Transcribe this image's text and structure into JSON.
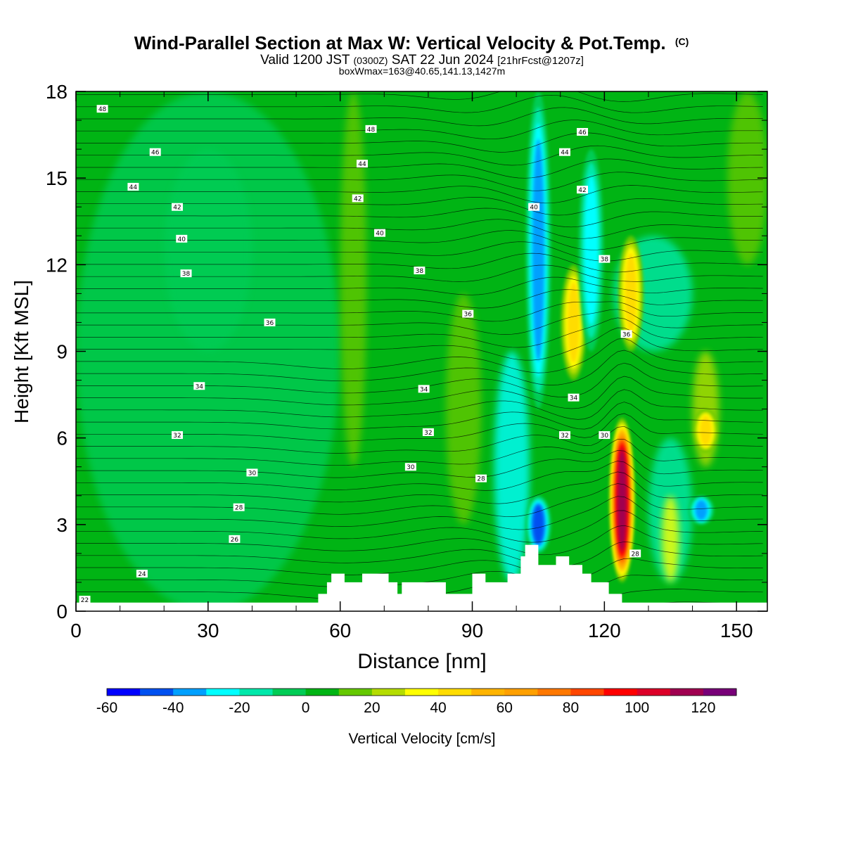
{
  "header": {
    "title": "Wind-Parallel Section at Max W: Vertical Velocity & Pot.Temp.",
    "title_mark": "(C)",
    "valid_prefix": "Valid 1200 JST",
    "valid_utc": "(0300Z)",
    "valid_date": "SAT 22 Jun 2024",
    "forecast": "[21hrFcst@1207z]",
    "boxwmax": "boxWmax=163@40.65,141.13,1427m"
  },
  "chart_data": {
    "type": "heatmap",
    "xlabel": "Distance [nm]",
    "ylabel": "Height [Kft MSL]",
    "xlim": [
      0,
      157
    ],
    "ylim": [
      0,
      18
    ],
    "xticks": [
      0,
      30,
      60,
      90,
      120,
      150
    ],
    "yticks": [
      0,
      3,
      6,
      9,
      12,
      15,
      18
    ],
    "colorbar": {
      "label": "Vertical Velocity [cm/s]",
      "levels": [
        -60,
        -50,
        -40,
        -30,
        -20,
        -10,
        0,
        10,
        20,
        30,
        40,
        50,
        60,
        70,
        80,
        90,
        100,
        110,
        120,
        130
      ],
      "tick_labels": [
        "-60",
        "-40",
        "-20",
        "0",
        "20",
        "40",
        "60",
        "80",
        "100",
        "120"
      ],
      "colors": [
        "#0000ff",
        "#0050f0",
        "#00a0ff",
        "#00ffff",
        "#00e8aa",
        "#00cc55",
        "#00b414",
        "#64c800",
        "#b4dc00",
        "#ffff00",
        "#ffdc00",
        "#ffb400",
        "#ffa000",
        "#ff7800",
        "#ff4600",
        "#ff0000",
        "#dc0028",
        "#a00050",
        "#780078"
      ]
    },
    "vertical_velocity_features": [
      {
        "x": 105,
        "z_bottom": 7,
        "z_top": 18,
        "w": -40
      },
      {
        "x": 105,
        "z_bottom": 2,
        "z_top": 4,
        "w": -50
      },
      {
        "x": 113,
        "z_bottom": 8,
        "z_top": 12,
        "w": 40
      },
      {
        "x": 117,
        "z_bottom": 9,
        "z_top": 16,
        "w": -30
      },
      {
        "x": 124,
        "z_bottom": 1,
        "z_top": 6.7,
        "w": 110
      },
      {
        "x": 126,
        "z_bottom": 9,
        "z_top": 13,
        "w": 40
      },
      {
        "x": 142,
        "z_bottom": 3,
        "z_top": 4,
        "w": -40
      },
      {
        "x": 143,
        "z_bottom": 5.5,
        "z_top": 7,
        "w": 40
      }
    ],
    "theta_contour_labels": [
      {
        "value": "48",
        "x": 6,
        "z": 17.4
      },
      {
        "value": "46",
        "x": 18,
        "z": 15.9
      },
      {
        "value": "44",
        "x": 13,
        "z": 14.7
      },
      {
        "value": "42",
        "x": 23,
        "z": 14.0
      },
      {
        "value": "40",
        "x": 24,
        "z": 12.9
      },
      {
        "value": "38",
        "x": 25,
        "z": 11.7
      },
      {
        "value": "36",
        "x": 44,
        "z": 10.0
      },
      {
        "value": "34",
        "x": 28,
        "z": 7.8
      },
      {
        "value": "32",
        "x": 23,
        "z": 6.1
      },
      {
        "value": "30",
        "x": 40,
        "z": 4.8
      },
      {
        "value": "28",
        "x": 37,
        "z": 3.6
      },
      {
        "value": "26",
        "x": 36,
        "z": 2.5
      },
      {
        "value": "24",
        "x": 15,
        "z": 1.3
      },
      {
        "value": "22",
        "x": 2,
        "z": 0.4
      },
      {
        "value": "48",
        "x": 67,
        "z": 16.7
      },
      {
        "value": "44",
        "x": 65,
        "z": 15.5
      },
      {
        "value": "42",
        "x": 64,
        "z": 14.3
      },
      {
        "value": "40",
        "x": 69,
        "z": 13.1
      },
      {
        "value": "38",
        "x": 78,
        "z": 11.8
      },
      {
        "value": "36",
        "x": 89,
        "z": 10.3
      },
      {
        "value": "34",
        "x": 79,
        "z": 7.7
      },
      {
        "value": "32",
        "x": 80,
        "z": 6.2
      },
      {
        "value": "30",
        "x": 76,
        "z": 5.0
      },
      {
        "value": "28",
        "x": 92,
        "z": 4.6
      },
      {
        "value": "46",
        "x": 115,
        "z": 16.6
      },
      {
        "value": "44",
        "x": 111,
        "z": 15.9
      },
      {
        "value": "42",
        "x": 115,
        "z": 14.6
      },
      {
        "value": "40",
        "x": 104,
        "z": 14.0
      },
      {
        "value": "38",
        "x": 120,
        "z": 12.2
      },
      {
        "value": "36",
        "x": 125,
        "z": 9.6
      },
      {
        "value": "34",
        "x": 113,
        "z": 7.4
      },
      {
        "value": "32",
        "x": 111,
        "z": 6.1
      },
      {
        "value": "30",
        "x": 120,
        "z": 6.1
      },
      {
        "value": "28",
        "x": 127,
        "z": 2.0
      }
    ],
    "terrain": [
      [
        0,
        0.3
      ],
      [
        55,
        0.3
      ],
      [
        55,
        0.6
      ],
      [
        57,
        0.6
      ],
      [
        57,
        1.0
      ],
      [
        58,
        1.0
      ],
      [
        58,
        1.3
      ],
      [
        61,
        1.3
      ],
      [
        61,
        1.0
      ],
      [
        65,
        1.0
      ],
      [
        65,
        1.3
      ],
      [
        71,
        1.3
      ],
      [
        71,
        1.0
      ],
      [
        73,
        1.0
      ],
      [
        73,
        0.6
      ],
      [
        74,
        0.6
      ],
      [
        74,
        1.0
      ],
      [
        84,
        1.0
      ],
      [
        84,
        0.6
      ],
      [
        90,
        0.6
      ],
      [
        90,
        1.3
      ],
      [
        93,
        1.3
      ],
      [
        93,
        1.0
      ],
      [
        98,
        1.0
      ],
      [
        98,
        1.3
      ],
      [
        101,
        1.3
      ],
      [
        101,
        1.9
      ],
      [
        102,
        1.9
      ],
      [
        102,
        2.3
      ],
      [
        105,
        2.3
      ],
      [
        105,
        1.6
      ],
      [
        109,
        1.6
      ],
      [
        109,
        1.9
      ],
      [
        112,
        1.9
      ],
      [
        112,
        1.6
      ],
      [
        115,
        1.6
      ],
      [
        115,
        1.3
      ],
      [
        117,
        1.3
      ],
      [
        117,
        1.0
      ],
      [
        121,
        1.0
      ],
      [
        121,
        0.6
      ],
      [
        124,
        0.6
      ],
      [
        124,
        0.3
      ],
      [
        157,
        0.3
      ]
    ]
  }
}
